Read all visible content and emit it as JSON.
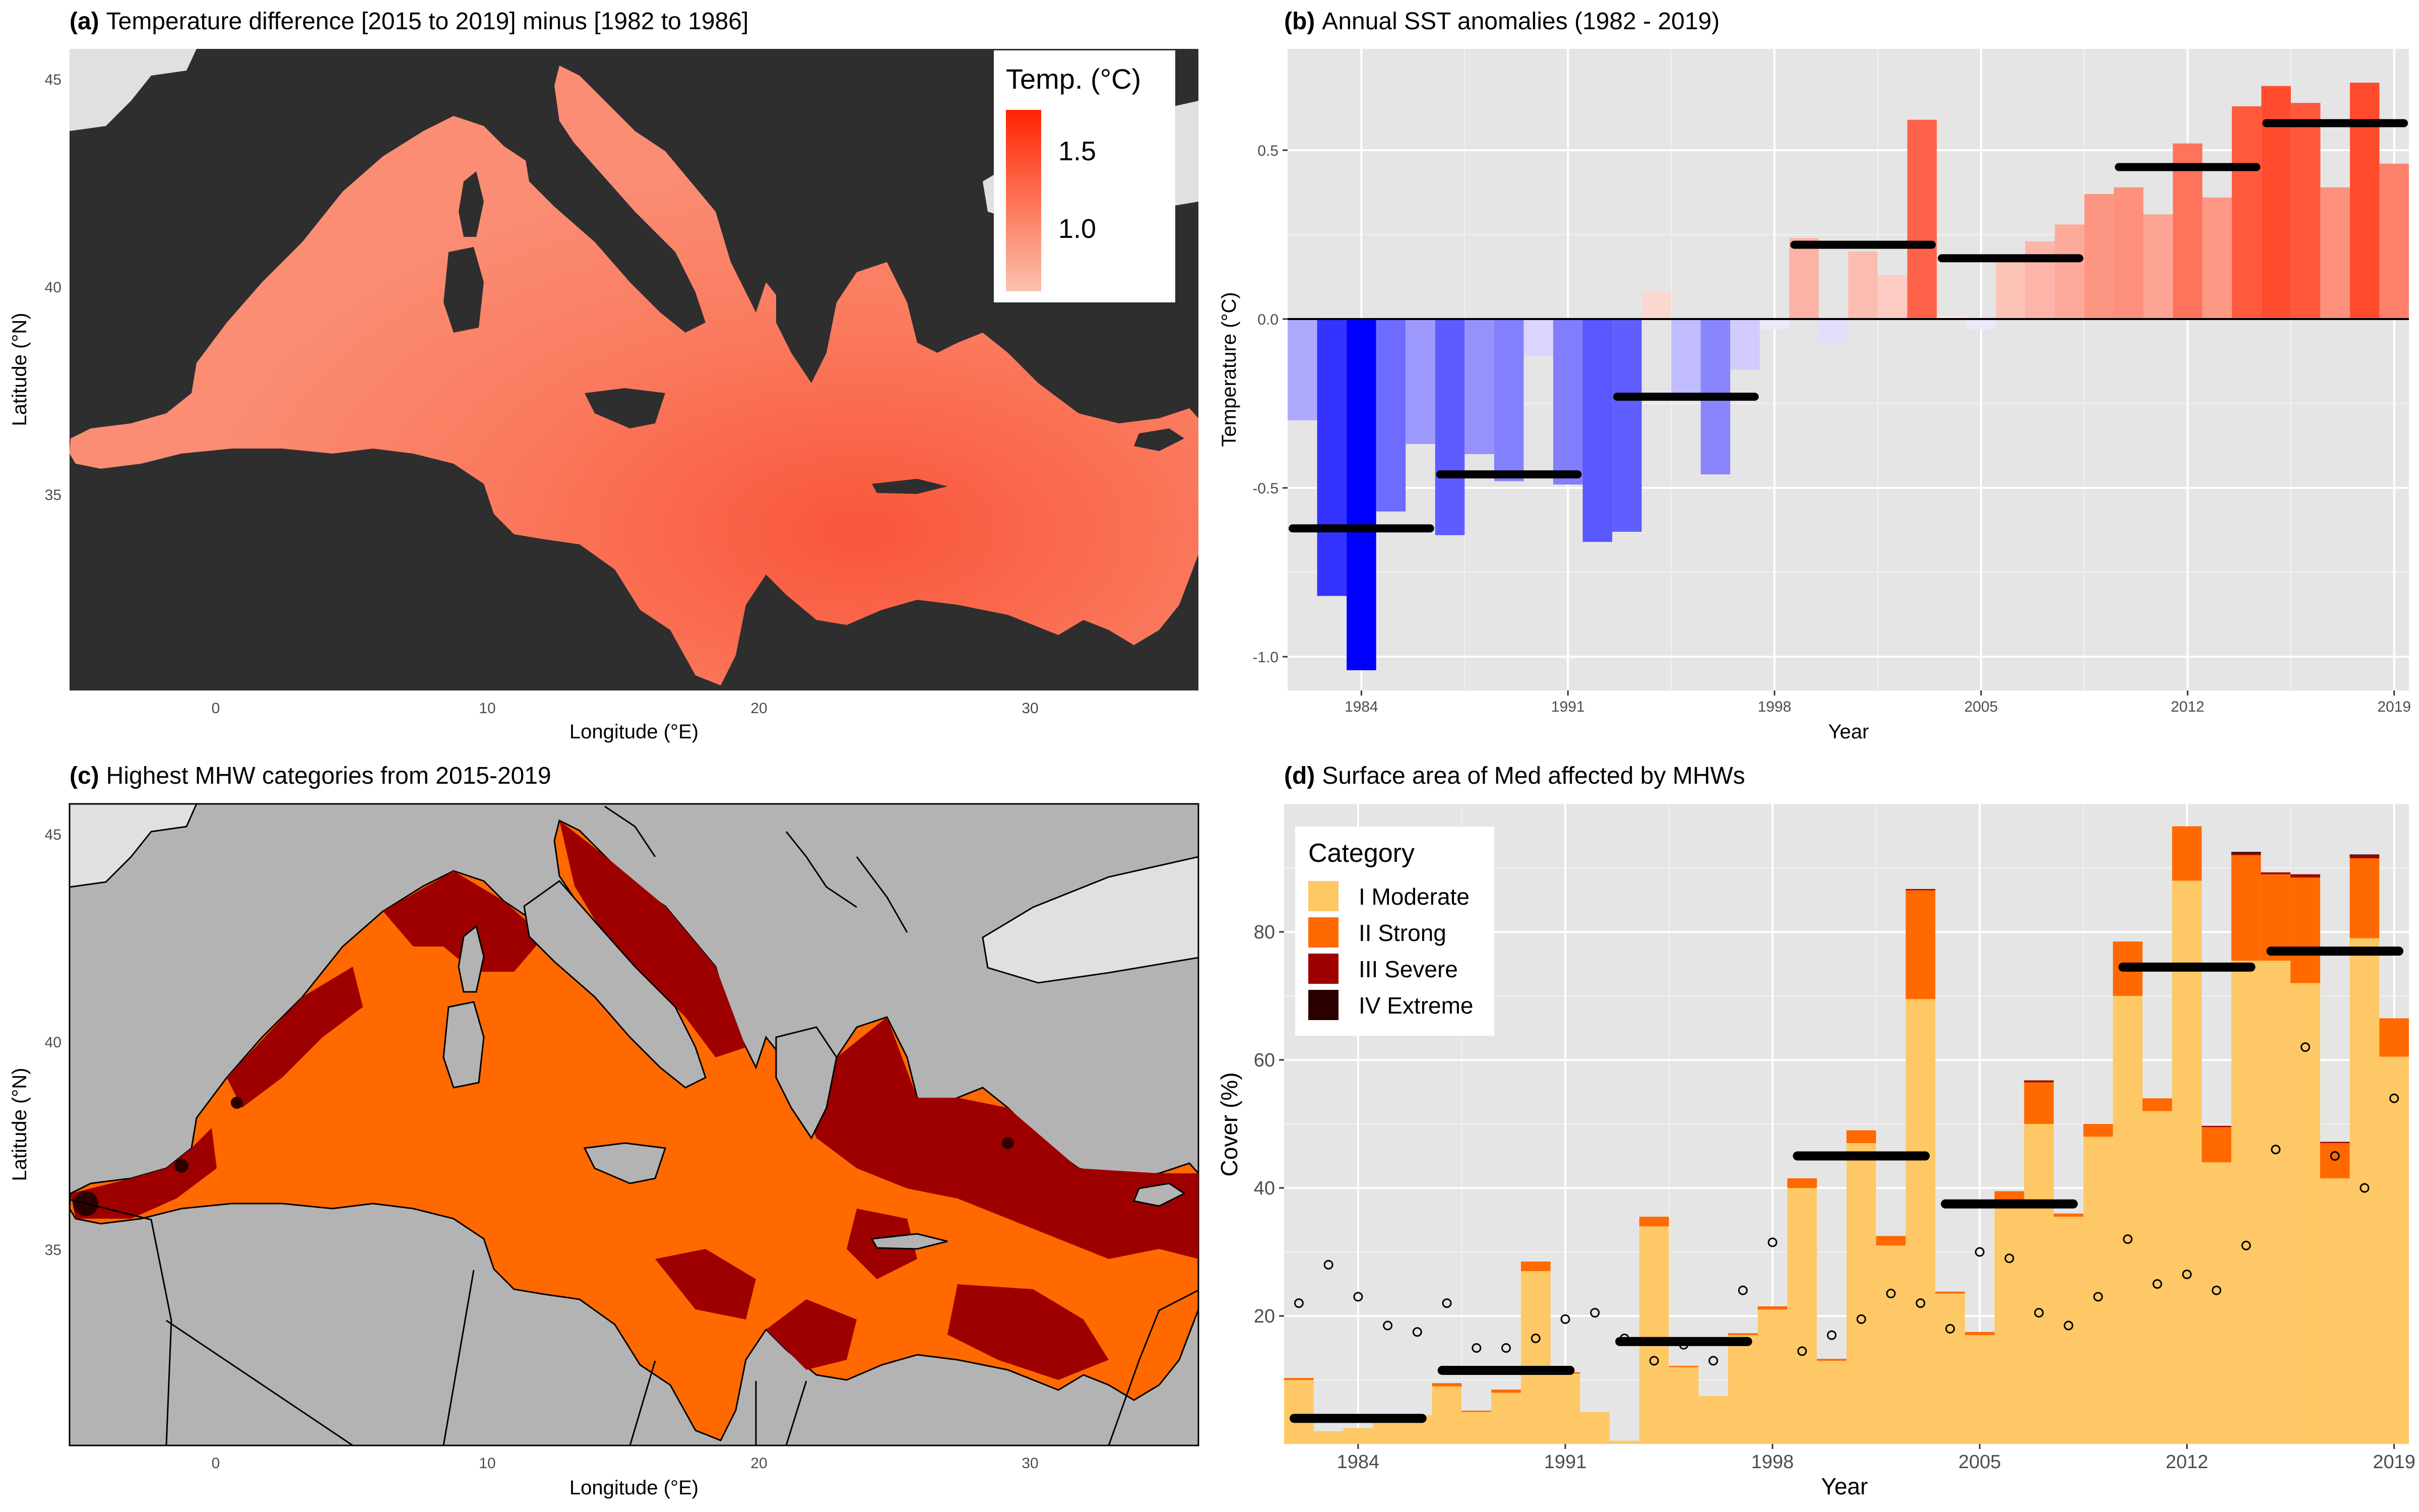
{
  "colors": {
    "panel_bg_dark": "#2e2e2e",
    "panel_bg_grey": "#e5e5e5",
    "land_grey": "#b3b3b3",
    "sea_warm_low": "#fbb8a3",
    "sea_warm_high": "#fa4a2c",
    "cold_strong": "#0000ff",
    "warm_strong": "#ff4a2c",
    "cat_moderate": "#ffc866",
    "cat_strong": "#ff6900",
    "cat_severe": "#9e0000",
    "cat_extreme": "#2d0000",
    "mean_bar": "#000000"
  },
  "panels": {
    "a": {
      "tag": "(a)",
      "title": "Temperature difference [2015 to 2019] minus [1982 to 1986]",
      "xlabel": "Longitude (°E)",
      "ylabel": "Latitude (°N)",
      "xticks": [
        "0",
        "10",
        "20",
        "30"
      ],
      "yticks": [
        "45",
        "40",
        "35"
      ],
      "legend_title": "Temp. (°C)",
      "legend_ticks": [
        "1.5",
        "1.0"
      ]
    },
    "b": {
      "tag": "(b)",
      "title": "Annual SST anomalies (1982 -  2019)",
      "xlabel": "Year",
      "ylabel": "Temperature (°C)"
    },
    "c": {
      "tag": "(c)",
      "title": "Highest MHW categories from 2015-2019",
      "xlabel": "Longitude (°E)",
      "ylabel": "Latitude (°N)",
      "xticks": [
        "0",
        "10",
        "20",
        "30"
      ],
      "yticks": [
        "45",
        "40",
        "35"
      ]
    },
    "d": {
      "tag": "(d)",
      "title": "Surface area of Med affected by MHWs",
      "xlabel": "Year",
      "ylabel": "Cover (%)",
      "legend_title": "Category",
      "legend_items": [
        "I Moderate",
        "II Strong",
        "III Severe",
        "IV Extreme"
      ]
    }
  },
  "chart_data": [
    {
      "panel": "b",
      "type": "bar",
      "title": "Annual SST anomalies (1982 -  2019)",
      "xlabel": "Year",
      "ylabel": "Temperature (°C)",
      "xlim": [
        1981.5,
        2019.5
      ],
      "ylim": [
        -1.1,
        0.8
      ],
      "xticks": [
        1984,
        1991,
        1998,
        2005,
        2012,
        2019
      ],
      "yticks": [
        -1.0,
        -0.5,
        0.0,
        0.5
      ],
      "ytick_labels": [
        "-1.0",
        "-0.5",
        "0.0",
        "0.5"
      ],
      "x": [
        1982,
        1983,
        1984,
        1985,
        1986,
        1987,
        1988,
        1989,
        1990,
        1991,
        1992,
        1993,
        1994,
        1995,
        1996,
        1997,
        1998,
        1999,
        2000,
        2001,
        2002,
        2003,
        2004,
        2005,
        2006,
        2007,
        2008,
        2009,
        2010,
        2011,
        2012,
        2013,
        2014,
        2015,
        2016,
        2017,
        2018,
        2019
      ],
      "values": [
        -0.3,
        -0.82,
        -1.04,
        -0.57,
        -0.37,
        -0.64,
        -0.4,
        -0.48,
        -0.11,
        -0.49,
        -0.66,
        -0.63,
        0.08,
        -0.22,
        -0.46,
        -0.15,
        -0.03,
        0.24,
        -0.07,
        0.2,
        0.13,
        0.59,
        0.01,
        -0.03,
        0.17,
        0.23,
        0.28,
        0.37,
        0.39,
        0.31,
        0.52,
        0.36,
        0.63,
        0.69,
        0.64,
        0.39,
        0.7,
        0.46
      ],
      "period_means": [
        {
          "start": 1982,
          "end": 1986,
          "value": -0.62
        },
        {
          "start": 1987,
          "end": 1991,
          "value": -0.46
        },
        {
          "start": 1993,
          "end": 1997,
          "value": -0.23
        },
        {
          "start": 1999,
          "end": 2003,
          "value": 0.22
        },
        {
          "start": 2004,
          "end": 2008,
          "value": 0.18
        },
        {
          "start": 2010,
          "end": 2014,
          "value": 0.45
        },
        {
          "start": 2015,
          "end": 2019,
          "value": 0.58
        }
      ],
      "grid": true
    },
    {
      "panel": "d",
      "type": "bar",
      "stacked": true,
      "title": "Surface area of Med affected by MHWs",
      "xlabel": "Year",
      "ylabel": "Cover (%)",
      "xlim": [
        1981.5,
        2019.5
      ],
      "ylim": [
        0,
        100
      ],
      "xticks": [
        1984,
        1991,
        1998,
        2005,
        2012,
        2019
      ],
      "yticks": [
        20,
        40,
        60,
        80
      ],
      "legend_position": "top-left",
      "x": [
        1982,
        1983,
        1984,
        1985,
        1986,
        1987,
        1988,
        1989,
        1990,
        1991,
        1992,
        1993,
        1994,
        1995,
        1996,
        1997,
        1998,
        1999,
        2000,
        2001,
        2002,
        2003,
        2004,
        2005,
        2006,
        2007,
        2008,
        2009,
        2010,
        2011,
        2012,
        2013,
        2014,
        2015,
        2016,
        2017,
        2018,
        2019
      ],
      "series": [
        {
          "name": "I Moderate",
          "values": [
            10,
            2,
            2.5,
            3.5,
            4.5,
            9,
            5,
            8,
            27,
            11,
            5,
            0.5,
            34,
            12,
            7.5,
            17,
            21,
            40,
            13,
            47,
            31,
            69.5,
            23.5,
            17,
            38,
            50,
            35.5,
            48,
            70,
            52,
            88,
            44,
            75.5,
            75.5,
            72,
            41.5,
            79,
            60.5
          ]
        },
        {
          "name": "II Strong",
          "values": [
            0.3,
            0,
            0,
            0,
            0,
            0.5,
            0.2,
            0.5,
            1.5,
            0.2,
            0,
            0,
            1.5,
            0.2,
            0,
            0.3,
            0.5,
            1.5,
            0.3,
            2,
            1.5,
            17,
            0.3,
            0.5,
            1.5,
            6.5,
            0.5,
            2,
            8.5,
            2,
            8.5,
            5.5,
            16.5,
            13.5,
            16.5,
            5.5,
            12.5,
            6
          ]
        },
        {
          "name": "III Severe",
          "values": [
            0,
            0,
            0,
            0,
            0,
            0,
            0,
            0,
            0,
            0,
            0,
            0,
            0,
            0,
            0,
            0,
            0,
            0,
            0,
            0,
            0,
            0.2,
            0,
            0,
            0,
            0.3,
            0,
            0,
            0,
            0,
            0,
            0.2,
            0.3,
            0.3,
            0.5,
            0.2,
            0.5,
            0
          ]
        },
        {
          "name": "IV Extreme",
          "values": [
            0,
            0,
            0,
            0,
            0,
            0,
            0,
            0,
            0,
            0,
            0,
            0,
            0,
            0,
            0,
            0,
            0,
            0,
            0,
            0,
            0,
            0,
            0,
            0,
            0,
            0,
            0,
            0,
            0,
            0,
            0,
            0,
            0.2,
            0,
            0,
            0,
            0.1,
            0
          ]
        }
      ],
      "points": [
        22,
        28,
        23,
        18.5,
        17.5,
        22,
        15,
        15,
        16.5,
        19.5,
        20.5,
        16.5,
        13,
        15.5,
        13,
        24,
        31.5,
        14.5,
        17,
        19.5,
        23.5,
        22,
        18,
        30,
        29,
        20.5,
        18.5,
        23,
        32,
        25,
        26.5,
        24,
        31,
        46,
        62,
        45,
        40,
        54
      ],
      "period_means": [
        {
          "start": 1982,
          "end": 1986,
          "value": 4
        },
        {
          "start": 1987,
          "end": 1991,
          "value": 11.5
        },
        {
          "start": 1993,
          "end": 1997,
          "value": 16
        },
        {
          "start": 1999,
          "end": 2003,
          "value": 45
        },
        {
          "start": 2004,
          "end": 2008,
          "value": 37.5
        },
        {
          "start": 2010,
          "end": 2014,
          "value": 74.5
        },
        {
          "start": 2015,
          "end": 2019,
          "value": 77
        }
      ],
      "grid": true
    }
  ]
}
